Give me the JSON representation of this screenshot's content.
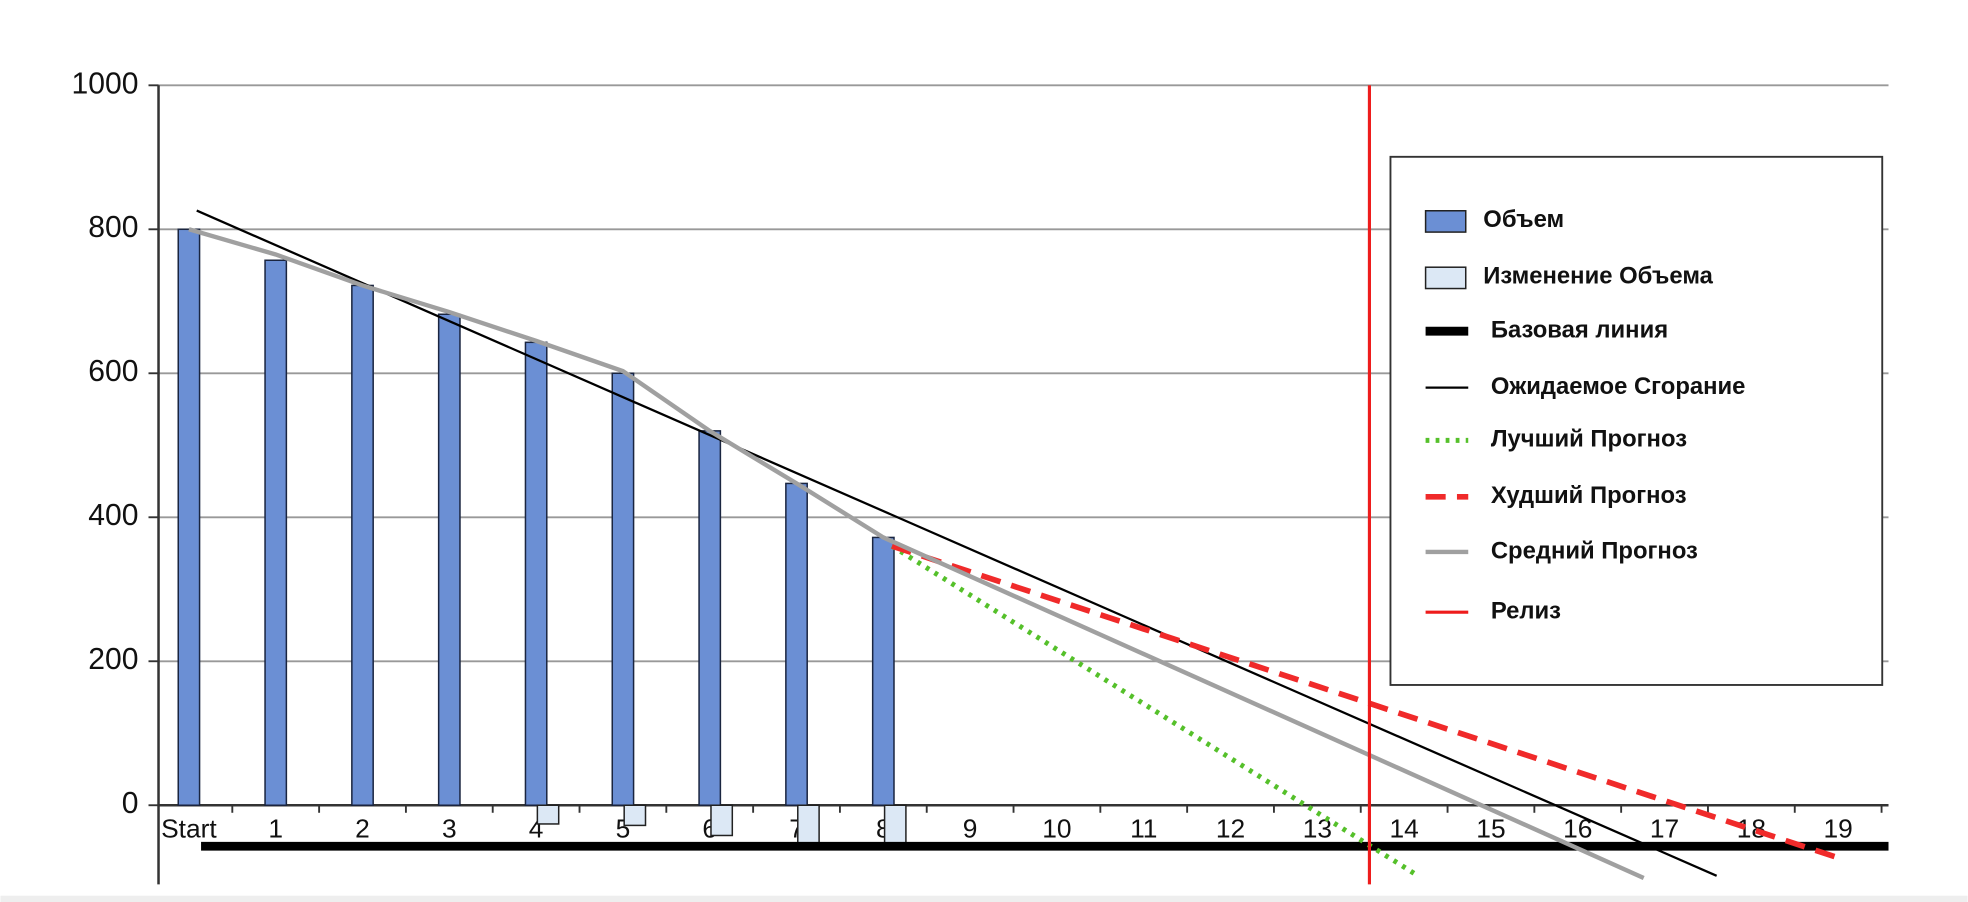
{
  "chart_data": {
    "type": "bar",
    "categories": [
      "Start",
      "1",
      "2",
      "3",
      "4",
      "5",
      "6",
      "7",
      "8",
      "9",
      "10",
      "11",
      "12",
      "13",
      "14",
      "15",
      "16",
      "17",
      "18",
      "19"
    ],
    "xlim": [
      -0.35,
      19.58
    ],
    "ylim": [
      -110,
      1000
    ],
    "yticks": [
      0,
      200,
      400,
      600,
      800,
      1000
    ],
    "grid": true,
    "legend": "upper right",
    "series": [
      {
        "name": "Объем",
        "type": "bar",
        "color": "#6b8fd4",
        "values": [
          800,
          757,
          722,
          682,
          643,
          600,
          520,
          447,
          372,
          null,
          null,
          null,
          null,
          null,
          null,
          null,
          null,
          null,
          null,
          null
        ]
      },
      {
        "name": "Изменение Объема",
        "type": "scope",
        "color": "#dce8f5",
        "values": [
          null,
          null,
          null,
          null,
          -26,
          -28,
          -42,
          -55,
          -55,
          null,
          null,
          null,
          null,
          null,
          null,
          null,
          null,
          null,
          null,
          null
        ]
      },
      {
        "name": "Базовая линия",
        "type": "line",
        "style": "baseline",
        "color": "#000000",
        "x": [
          0.14,
          19.58
        ],
        "values": [
          -57,
          -57
        ]
      },
      {
        "name": "Ожидаемое Сгорание",
        "type": "line",
        "style": "thin",
        "color": "#000000",
        "x": [
          0.09,
          17.6
        ],
        "values": [
          826,
          -98
        ]
      },
      {
        "name": "Лучший Прогноз",
        "type": "line",
        "style": "dotted",
        "color": "#55c02a",
        "x": [
          8.1,
          14.16
        ],
        "values": [
          360,
          -98
        ]
      },
      {
        "name": "Худший Прогноз",
        "type": "line",
        "style": "dashed",
        "color": "#f02a2a",
        "x": [
          8.1,
          19.05
        ],
        "values": [
          360,
          -75
        ]
      },
      {
        "name": "Средний Прогноз",
        "type": "line",
        "style": "gray",
        "color": "#a0a0a0",
        "x": [
          0,
          1,
          2,
          3,
          4,
          5,
          6,
          7,
          8,
          16.76
        ],
        "values": [
          800,
          765,
          722,
          685,
          645,
          603,
          520,
          447,
          372,
          -101
        ]
      },
      {
        "name": "Релиз",
        "type": "line",
        "style": "release",
        "color": "#ee1c1c",
        "x": [
          13.6,
          13.6
        ],
        "values": [
          -110,
          1000
        ]
      }
    ]
  }
}
